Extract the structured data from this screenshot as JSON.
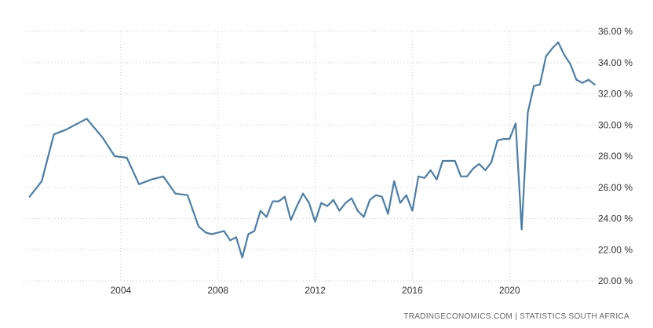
{
  "chart_data": {
    "type": "line",
    "title": "",
    "xlabel": "",
    "ylabel": "",
    "x_ticks": [
      "2004",
      "2008",
      "2012",
      "2016",
      "2020"
    ],
    "y_ticks": [
      "20.00 %",
      "22.00 %",
      "24.00 %",
      "26.00 %",
      "28.00 %",
      "30.00 %",
      "32.00 %",
      "34.00 %",
      "36.00 %"
    ],
    "xlim": [
      2000.0,
      2023.9
    ],
    "ylim": [
      20,
      36
    ],
    "grid": true,
    "line_color": "#4a7ea8",
    "series": [
      {
        "values": [
          [
            2000.25,
            25.4
          ],
          [
            2000.75,
            26.4
          ],
          [
            2001.25,
            29.4
          ],
          [
            2001.75,
            29.7
          ],
          [
            2002.6,
            30.4
          ],
          [
            2003.25,
            29.2
          ],
          [
            2003.75,
            28.0
          ],
          [
            2004.25,
            27.9
          ],
          [
            2004.75,
            26.2
          ],
          [
            2005.25,
            26.5
          ],
          [
            2005.75,
            26.7
          ],
          [
            2006.25,
            25.6
          ],
          [
            2006.75,
            25.5
          ],
          [
            2007.2,
            23.5
          ],
          [
            2007.5,
            23.1
          ],
          [
            2007.75,
            23.0
          ],
          [
            2008.25,
            23.2
          ],
          [
            2008.5,
            22.6
          ],
          [
            2008.75,
            22.8
          ],
          [
            2009.0,
            21.5
          ],
          [
            2009.25,
            23.0
          ],
          [
            2009.5,
            23.2
          ],
          [
            2009.75,
            24.5
          ],
          [
            2010.0,
            24.1
          ],
          [
            2010.25,
            25.1
          ],
          [
            2010.5,
            25.1
          ],
          [
            2010.75,
            25.4
          ],
          [
            2011.0,
            23.9
          ],
          [
            2011.25,
            24.8
          ],
          [
            2011.5,
            25.6
          ],
          [
            2011.75,
            25.0
          ],
          [
            2012.0,
            23.8
          ],
          [
            2012.25,
            25.0
          ],
          [
            2012.5,
            24.8
          ],
          [
            2012.75,
            25.2
          ],
          [
            2013.0,
            24.5
          ],
          [
            2013.25,
            25.0
          ],
          [
            2013.5,
            25.3
          ],
          [
            2013.75,
            24.5
          ],
          [
            2014.0,
            24.1
          ],
          [
            2014.25,
            25.2
          ],
          [
            2014.5,
            25.5
          ],
          [
            2014.75,
            25.4
          ],
          [
            2015.0,
            24.3
          ],
          [
            2015.25,
            26.4
          ],
          [
            2015.5,
            25.0
          ],
          [
            2015.75,
            25.5
          ],
          [
            2016.0,
            24.5
          ],
          [
            2016.25,
            26.7
          ],
          [
            2016.5,
            26.6
          ],
          [
            2016.75,
            27.1
          ],
          [
            2017.0,
            26.5
          ],
          [
            2017.25,
            27.7
          ],
          [
            2017.5,
            27.7
          ],
          [
            2017.75,
            27.7
          ],
          [
            2018.0,
            26.7
          ],
          [
            2018.25,
            26.7
          ],
          [
            2018.5,
            27.2
          ],
          [
            2018.75,
            27.5
          ],
          [
            2019.0,
            27.1
          ],
          [
            2019.25,
            27.6
          ],
          [
            2019.5,
            29.0
          ],
          [
            2019.75,
            29.1
          ],
          [
            2020.0,
            29.1
          ],
          [
            2020.25,
            30.1
          ],
          [
            2020.5,
            23.3
          ],
          [
            2020.75,
            30.8
          ],
          [
            2021.0,
            32.5
          ],
          [
            2021.25,
            32.6
          ],
          [
            2021.5,
            34.4
          ],
          [
            2021.75,
            34.9
          ],
          [
            2022.0,
            35.3
          ],
          [
            2022.25,
            34.5
          ],
          [
            2022.5,
            33.9
          ],
          [
            2022.75,
            32.9
          ],
          [
            2023.0,
            32.7
          ],
          [
            2023.25,
            32.9
          ],
          [
            2023.5,
            32.6
          ]
        ]
      }
    ]
  },
  "source_text": "TRADINGECONOMICS.COM  |  STATISTICS SOUTH AFRICA"
}
